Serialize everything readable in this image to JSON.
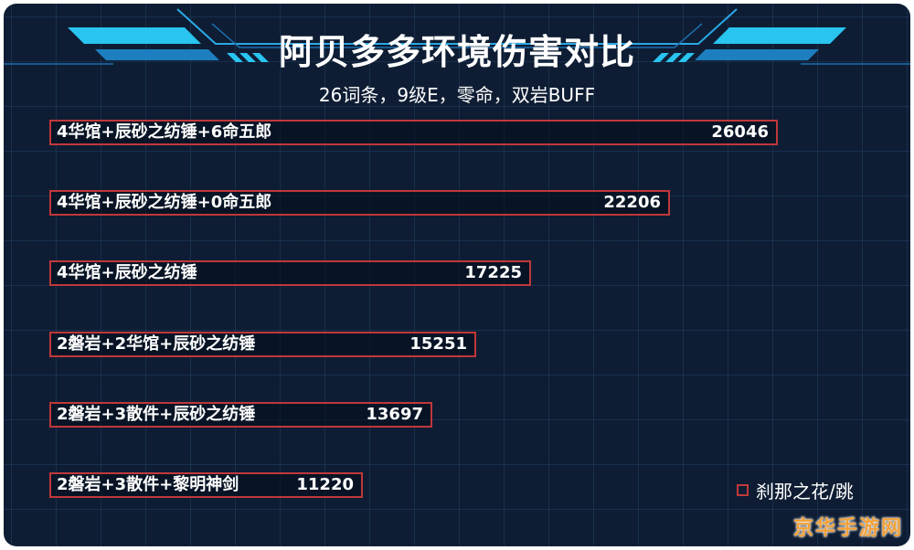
{
  "chart_data": {
    "type": "bar",
    "orientation": "horizontal",
    "title": "阿贝多多环境伤害对比",
    "subtitle": "26词条，9级E，零命，双岩BUFF",
    "categories": [
      "4华馆+辰砂之纺锤+6命五郎",
      "4华馆+辰砂之纺锤+0命五郎",
      "4华馆+辰砂之纺锤",
      "2磐岩+2华馆+辰砂之纺锤",
      "2磐岩+3散件+辰砂之纺锤",
      "2磐岩+3散件+黎明神剑"
    ],
    "values": [
      26046,
      22206,
      17225,
      15251,
      13697,
      11220
    ],
    "xlim": [
      0,
      26046
    ],
    "grid": true,
    "legend": "bottom-right",
    "bar_color": "#c0383a"
  },
  "legend": {
    "label": "刹那之花/跳"
  },
  "watermark": "京华手游网",
  "colors": {
    "background": "#0e1d33",
    "accent": "#29c4f0"
  }
}
